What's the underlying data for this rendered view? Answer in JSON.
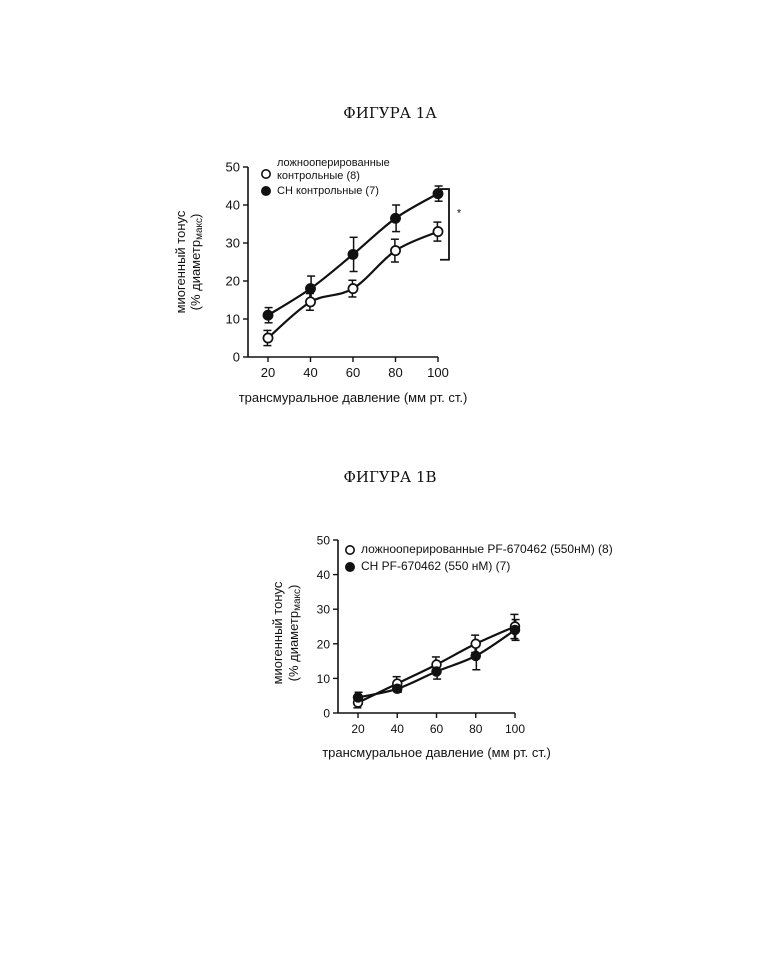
{
  "figures": [
    {
      "title": "ФИГУРА 1А"
    },
    {
      "title": "ФИГУРА 1В"
    }
  ],
  "chart_data": [
    {
      "type": "line",
      "title": "ФИГУРА 1А",
      "xlabel": "трансмуральное давление (мм рт. ст.)",
      "ylabel": "миогенный тонус",
      "ylabel2": "(% диаметр",
      "ylabel2_sub": "макс",
      "ylabel2_end": ")",
      "x": [
        20,
        40,
        60,
        80,
        100
      ],
      "xlim": [
        20,
        100
      ],
      "ylim": [
        0,
        50
      ],
      "xticks": [
        "20",
        "40",
        "60",
        "80",
        "100"
      ],
      "yticks": [
        "0",
        "10",
        "20",
        "30",
        "40",
        "50"
      ],
      "significance_marker": "*",
      "series": [
        {
          "name": "ложнооперированные контрольные (8)",
          "name_lines": [
            "ложнооперированные",
            "контрольные (8)"
          ],
          "marker": "open",
          "values": [
            5,
            14.5,
            18,
            28,
            33
          ],
          "errors": [
            2,
            2.2,
            2.2,
            3,
            2.5
          ]
        },
        {
          "name": "СН контрольные (7)",
          "name_lines": [
            "СН контрольные (7)"
          ],
          "marker": "filled",
          "values": [
            11,
            18,
            27,
            36.5,
            43
          ],
          "errors": [
            2,
            3.3,
            4.5,
            3.5,
            2
          ]
        }
      ]
    },
    {
      "type": "line",
      "title": "ФИГУРА 1В",
      "xlabel": "трансмуральное давление (мм рт. ст.)",
      "ylabel": "миогенный тонус",
      "ylabel2": "(% диаметр",
      "ylabel2_sub": "макс",
      "ylabel2_end": ")",
      "x": [
        20,
        40,
        60,
        80,
        100
      ],
      "xlim": [
        20,
        100
      ],
      "ylim": [
        0,
        50
      ],
      "xticks": [
        "20",
        "40",
        "60",
        "80",
        "100"
      ],
      "yticks": [
        "0",
        "10",
        "20",
        "30",
        "40",
        "50"
      ],
      "series": [
        {
          "name": "ложнооперированные PF-670462 (550нМ) (8)",
          "name_lines": [
            "ложнооперированные PF-670462 (550нМ) (8)"
          ],
          "marker": "open",
          "values": [
            3,
            8.5,
            14,
            20,
            25
          ],
          "errors": [
            1.5,
            2,
            2.2,
            2.5,
            3.5
          ]
        },
        {
          "name": "СН PF-670462 (550 нМ) (7)",
          "name_lines": [
            "СН PF-670462 (550 нМ) (7)"
          ],
          "marker": "filled",
          "values": [
            4.5,
            7,
            12,
            16.5,
            24
          ],
          "errors": [
            1.5,
            1,
            2.2,
            4,
            3
          ]
        }
      ]
    }
  ]
}
